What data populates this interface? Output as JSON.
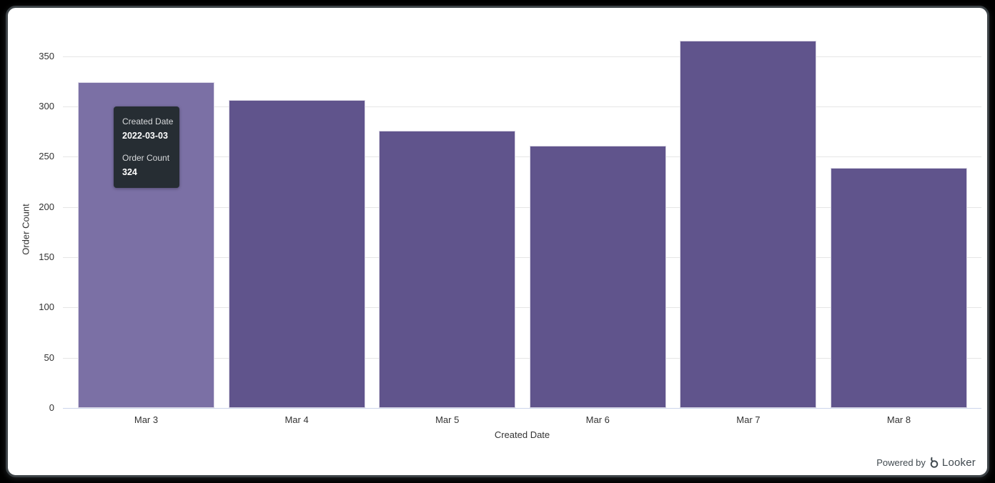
{
  "chart_data": {
    "type": "bar",
    "title": "",
    "categories": [
      "Mar 3",
      "Mar 4",
      "Mar 5",
      "Mar 6",
      "Mar 7",
      "Mar 8"
    ],
    "values": [
      324,
      306,
      276,
      261,
      365,
      239
    ],
    "xlabel": "Created Date",
    "ylabel": "Order Count",
    "ylim": [
      0,
      350
    ],
    "y_ticks": [
      0,
      50,
      100,
      150,
      200,
      250,
      300,
      350
    ],
    "grid": true,
    "legend": "none",
    "bar_color": "#60548c",
    "bar_color_hover": "#7b70a5",
    "hovered_index": 0,
    "gridline_color": "#e6e6e6",
    "axis_line_color": "#ccd6eb",
    "axis_text_color": "#333333"
  },
  "tooltip": {
    "dimension_label": "Created Date",
    "dimension_value": "2022-03-03",
    "measure_label": "Order Count",
    "measure_value": "324",
    "background_color": "#262d33"
  },
  "footer": {
    "powered_by_label": "Powered by",
    "brand_label": "Looker"
  }
}
